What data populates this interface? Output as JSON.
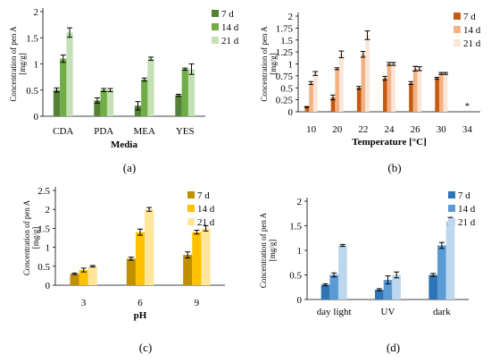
{
  "chart_data": [
    {
      "type": "bar",
      "panel_label": "(a)",
      "xlabel": "Media",
      "ylabel": "Concentration of pen A [mg/g]",
      "ylim": [
        0,
        2
      ],
      "yticks": [
        0,
        0.5,
        1,
        1.5,
        2
      ],
      "categories": [
        "CDA",
        "PDA",
        "MEA",
        "YES"
      ],
      "series": [
        {
          "name": "7 d",
          "color": "#538135",
          "values": [
            0.5,
            0.3,
            0.2,
            0.4
          ],
          "errors": [
            0.04,
            0.05,
            0.08,
            0.02
          ]
        },
        {
          "name": "14 d",
          "color": "#70ad47",
          "values": [
            1.1,
            0.5,
            0.7,
            0.9
          ],
          "errors": [
            0.07,
            0.03,
            0.03,
            0.02
          ]
        },
        {
          "name": "21 d",
          "color": "#c5e0b4",
          "values": [
            1.6,
            0.5,
            1.1,
            0.9
          ],
          "errors": [
            0.09,
            0.03,
            0.03,
            0.1
          ]
        }
      ],
      "legend": "right",
      "annotations": []
    },
    {
      "type": "bar",
      "panel_label": "(b)",
      "xlabel": "Temperature [°C]",
      "ylabel": "Concentration of pen A [mg/g]",
      "ylim": [
        0,
        2
      ],
      "yticks": [
        0,
        0.25,
        0.5,
        0.75,
        1,
        1.25,
        1.5,
        1.75,
        2
      ],
      "categories": [
        "10",
        "20",
        "22",
        "24",
        "26",
        "30",
        "34"
      ],
      "series": [
        {
          "name": "7 d",
          "color": "#c55a11",
          "values": [
            0.1,
            0.3,
            0.5,
            0.7,
            0.6,
            0.7,
            0
          ],
          "errors": [
            0.01,
            0.05,
            0.03,
            0.04,
            0.03,
            0.02,
            0
          ]
        },
        {
          "name": "14 d",
          "color": "#f4b183",
          "values": [
            0.6,
            0.9,
            1.2,
            1.0,
            0.9,
            0.8,
            0
          ],
          "errors": [
            0.03,
            0.02,
            0.06,
            0.03,
            0.05,
            0.02,
            0
          ]
        },
        {
          "name": "21 d",
          "color": "#fbe5d6",
          "values": [
            0.8,
            1.2,
            1.6,
            1.0,
            0.9,
            0.8,
            0
          ],
          "errors": [
            0.04,
            0.07,
            0.09,
            0.03,
            0.04,
            0.02,
            0
          ]
        }
      ],
      "legend": "right",
      "annotations": [
        {
          "category": "34",
          "text": "*"
        }
      ]
    },
    {
      "type": "bar",
      "panel_label": "(c)",
      "xlabel": "pH",
      "ylabel": "Concentration of pen A [mg/g]",
      "ylim": [
        0,
        2.5
      ],
      "yticks": [
        0,
        0.5,
        1,
        1.5,
        2,
        2.5
      ],
      "categories": [
        "3",
        "6",
        "9"
      ],
      "series": [
        {
          "name": "7 d",
          "color": "#bf9000",
          "values": [
            0.3,
            0.7,
            0.8
          ],
          "errors": [
            0.02,
            0.04,
            0.08
          ]
        },
        {
          "name": "14 d",
          "color": "#ffc000",
          "values": [
            0.4,
            1.4,
            1.4
          ],
          "errors": [
            0.05,
            0.08,
            0.05
          ]
        },
        {
          "name": "21 d",
          "color": "#ffe699",
          "values": [
            0.5,
            2.0,
            1.5
          ],
          "errors": [
            0.02,
            0.05,
            0.07
          ]
        }
      ],
      "legend": "right",
      "annotations": []
    },
    {
      "type": "bar",
      "panel_label": "(d)",
      "xlabel": "",
      "ylabel": "Concentration of pen A [mg/g]",
      "ylim": [
        0,
        2
      ],
      "yticks": [
        0,
        0.5,
        1,
        1.5,
        2
      ],
      "categories": [
        "day light",
        "UV",
        "dark"
      ],
      "series": [
        {
          "name": "7 d",
          "color": "#2e75b6",
          "values": [
            0.3,
            0.2,
            0.5
          ],
          "errors": [
            0.02,
            0.02,
            0.03
          ]
        },
        {
          "name": "14 d",
          "color": "#5b9bd5",
          "values": [
            0.5,
            0.4,
            1.1
          ],
          "errors": [
            0.04,
            0.08,
            0.06
          ]
        },
        {
          "name": "21 d",
          "color": "#bdd7ee",
          "values": [
            1.1,
            0.5,
            1.6
          ],
          "errors": [
            0.02,
            0.06,
            0.07
          ]
        }
      ],
      "legend": "right",
      "annotations": []
    }
  ]
}
